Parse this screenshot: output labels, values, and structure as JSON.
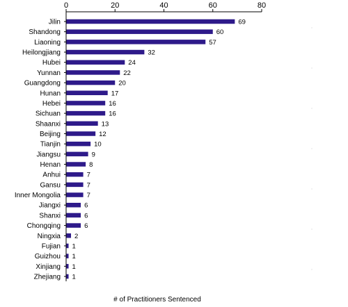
{
  "chart_data": {
    "type": "bar",
    "orientation": "horizontal",
    "categories": [
      "Jilin",
      "Shandong",
      "Liaoning",
      "Heilongjiang",
      "Hubei",
      "Yunnan",
      "Guangdong",
      "Hunan",
      "Hebei",
      "Sichuan",
      "Shaanxi",
      "Beijing",
      "Tianjin",
      "Jiangsu",
      "Henan",
      "Anhui",
      "Gansu",
      "Inner Mongolia",
      "Jiangxi",
      "Shanxi",
      "Chongqing",
      "Ningxia",
      "Fujian",
      "Guizhou",
      "Xinjiang",
      "Zhejiang"
    ],
    "values": [
      69,
      60,
      57,
      32,
      24,
      22,
      20,
      17,
      16,
      16,
      13,
      12,
      10,
      9,
      8,
      7,
      7,
      7,
      6,
      6,
      6,
      2,
      1,
      1,
      1,
      1
    ],
    "xlabel": "# of Practitioners Sentenced",
    "ylabel": "",
    "xlim": [
      0,
      80
    ],
    "xticks": [
      0,
      20,
      40,
      60,
      80
    ],
    "x_axis_position": "top",
    "grid": false,
    "bar_color": "#2e1a8a"
  }
}
